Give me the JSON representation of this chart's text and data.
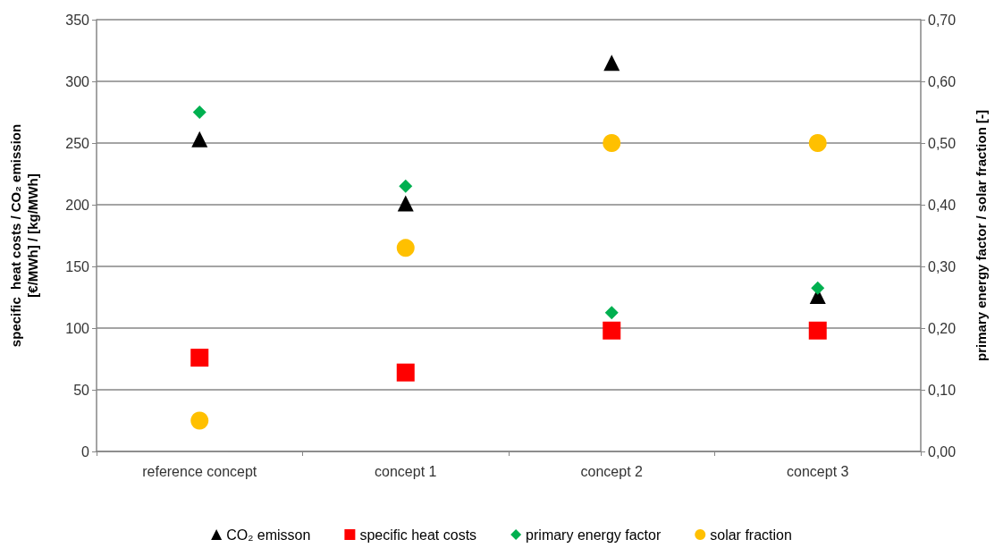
{
  "chart_data": {
    "type": "scatter",
    "categories": [
      "reference concept",
      "concept 1",
      "concept 2",
      "concept 3"
    ],
    "ylabel": "specific  heat costs / CO₂ emission\n[€/MWh] / [kg/MWh]",
    "y2label": "primary energy factor / solar fraction [-]",
    "ylim": [
      0,
      350
    ],
    "yticks": [
      0,
      50,
      100,
      150,
      200,
      250,
      300,
      350
    ],
    "y2lim": [
      0,
      0.7
    ],
    "y2ticks": [
      {
        "value": 0,
        "label": "0,00"
      },
      {
        "value": 0.1,
        "label": "0,10"
      },
      {
        "value": 0.2,
        "label": "0,20"
      },
      {
        "value": 0.3,
        "label": "0,30"
      },
      {
        "value": 0.4,
        "label": "0,40"
      },
      {
        "value": 0.5,
        "label": "0,50"
      },
      {
        "value": 0.6,
        "label": "0,60"
      },
      {
        "value": 0.7,
        "label": "0,70"
      }
    ],
    "grid": "y",
    "legend": "bottom",
    "series": [
      {
        "name": "CO₂ emisson",
        "color": "#000000",
        "marker": "triangle",
        "values": [
          253,
          201,
          315,
          126
        ]
      },
      {
        "name": "specific heat costs",
        "color": "#ff0000",
        "marker": "square",
        "values": [
          76,
          64,
          98,
          98
        ]
      },
      {
        "name": "primary energy factor",
        "color": "#00b050",
        "marker": "diamond",
        "axis": "y2",
        "values": [
          0.55,
          0.43,
          0.225,
          0.265
        ]
      },
      {
        "name": "solar fraction",
        "color": "#ffc000",
        "marker": "circle",
        "axis": "y2",
        "values": [
          0.05,
          0.33,
          0.5,
          0.5
        ]
      }
    ]
  }
}
